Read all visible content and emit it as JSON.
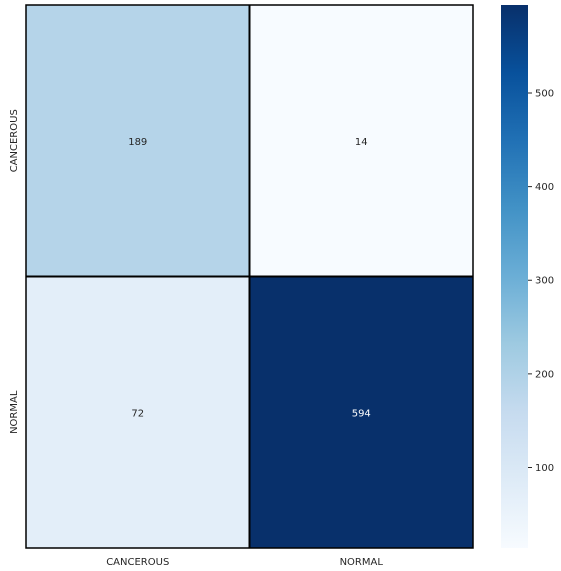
{
  "chart_data": {
    "type": "heatmap",
    "title": "",
    "xlabel": "",
    "ylabel": "",
    "x_categories": [
      "CANCEROUS",
      "NORMAL"
    ],
    "y_categories": [
      "CANCEROUS",
      "NORMAL"
    ],
    "values": [
      [
        189,
        14
      ],
      [
        72,
        594
      ]
    ],
    "colormap": "Blues",
    "color_range": [
      14,
      594
    ],
    "colorbar_ticks": [
      100,
      200,
      300,
      400,
      500
    ],
    "cell_border_color": "#000000",
    "text_color_light": "#ffffff",
    "text_color_dark": "#262626"
  }
}
